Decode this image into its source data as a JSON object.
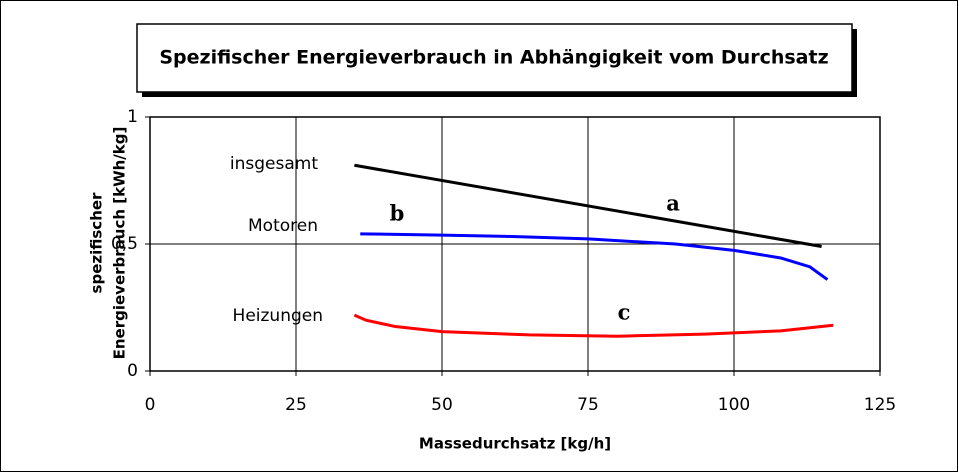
{
  "chart_data": {
    "type": "line",
    "title": "Spezifischer Energieverbrauch in Abhängigkeit vom Durchsatz",
    "xlabel": "Massedurchsatz [kg/h]",
    "ylabel": [
      "spezifischer",
      "Energieverbrauch [kWh/kg]"
    ],
    "xlim": [
      0,
      125
    ],
    "xticks": [
      0,
      25,
      50,
      75,
      100,
      125
    ],
    "ylim": [
      0,
      1
    ],
    "yticks": [
      0,
      {
        "value": 0.5,
        "label": "0,5"
      },
      1
    ],
    "grid": true,
    "series": [
      {
        "name": "insgesamt",
        "color": "#000000",
        "x": [
          35,
          115
        ],
        "values": [
          0.81,
          0.49
        ]
      },
      {
        "name": "Motoren",
        "color": "#0000ff",
        "x": [
          36,
          50,
          61,
          75,
          90,
          100,
          108,
          113,
          116
        ],
        "values": [
          0.54,
          0.535,
          0.53,
          0.52,
          0.5,
          0.475,
          0.445,
          0.41,
          0.36
        ]
      },
      {
        "name": "Heizungen",
        "color": "#ff0000",
        "x": [
          35,
          37,
          42,
          50,
          65,
          80,
          95,
          108,
          117
        ],
        "values": [
          0.22,
          0.2,
          0.175,
          0.155,
          0.142,
          0.137,
          0.145,
          0.158,
          0.18
        ]
      }
    ],
    "annotations": [
      "a",
      "b",
      "c"
    ]
  }
}
